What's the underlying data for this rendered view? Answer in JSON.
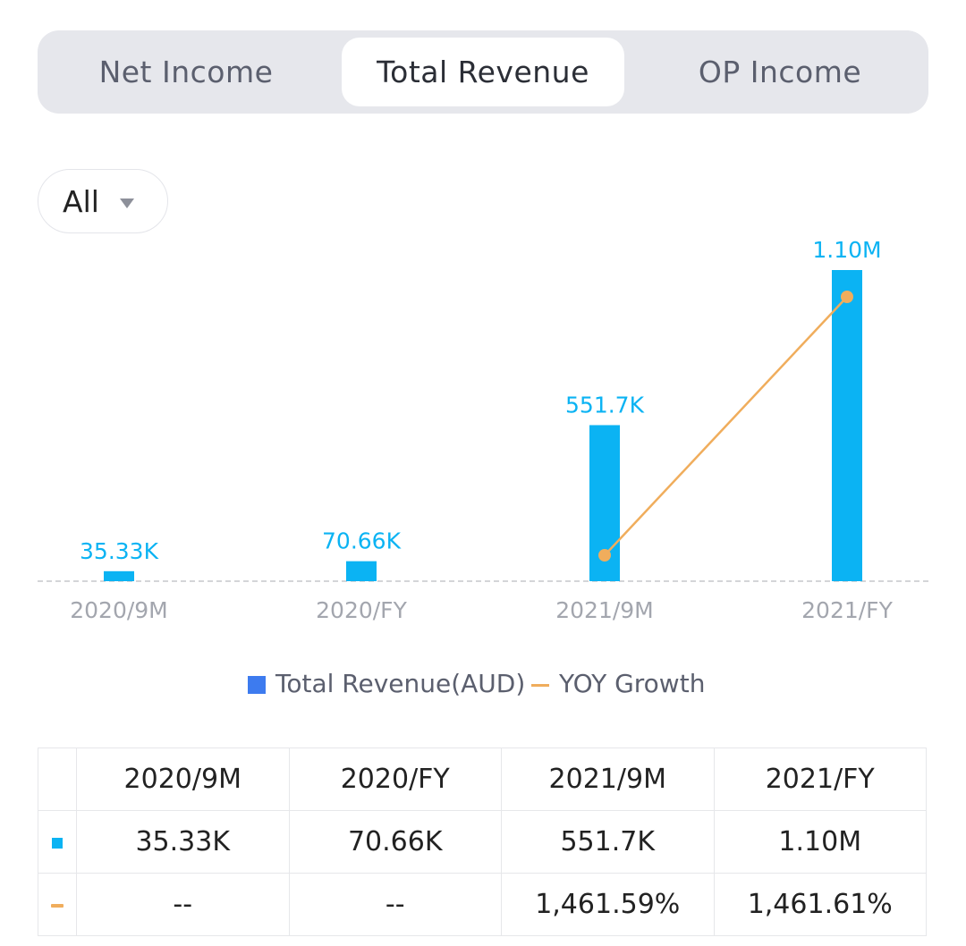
{
  "tabs": [
    {
      "label": "Net Income",
      "active": false
    },
    {
      "label": "Total Revenue",
      "active": true
    },
    {
      "label": "OP Income",
      "active": false
    }
  ],
  "filter": {
    "label": "All"
  },
  "colors": {
    "bar": "#0bb3f3",
    "line": "#f0ad5c",
    "legend_bar": "#3d7bef",
    "growth_positive": "#2dba7a"
  },
  "chart_data": {
    "type": "bar",
    "categories": [
      "2020/9M",
      "2020/FY",
      "2021/9M",
      "2021/FY"
    ],
    "series": [
      {
        "name": "Total Revenue(AUD)",
        "type": "bar",
        "values": [
          35330,
          70660,
          551700,
          1100000
        ],
        "labels": [
          "35.33K",
          "70.66K",
          "551.7K",
          "1.10M"
        ]
      },
      {
        "name": "YOY Growth",
        "type": "line",
        "values": [
          null,
          null,
          1461.59,
          1461.61
        ]
      }
    ],
    "grid": false
  },
  "legend": {
    "bar_label": "Total Revenue(AUD)",
    "line_label": "YOY Growth"
  },
  "table": {
    "headers": [
      "2020/9M",
      "2020/FY",
      "2021/9M",
      "2021/FY"
    ],
    "revenue_row": [
      "35.33K",
      "70.66K",
      "551.7K",
      "1.10M"
    ],
    "growth_row": [
      "--",
      "--",
      "1,461.59%",
      "1,461.61%"
    ]
  }
}
